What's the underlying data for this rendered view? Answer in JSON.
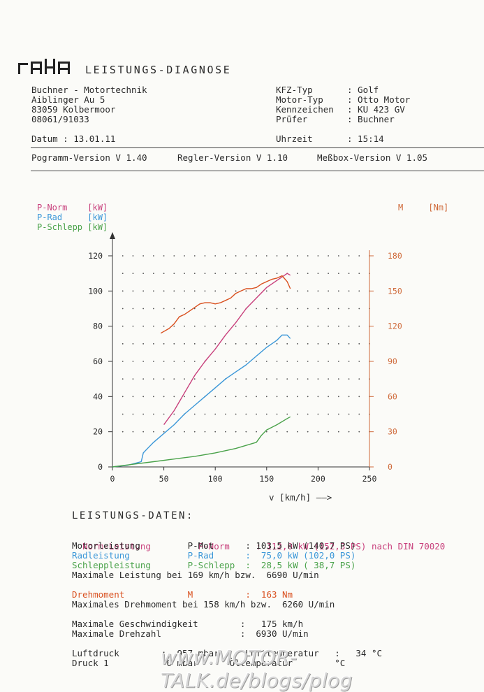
{
  "header": {
    "logo_text": "MAHA",
    "title": "LEISTUNGS-DIAGNOSE"
  },
  "company": {
    "line1": "Buchner - Motortechnik",
    "line2": "Aiblinger Au 5",
    "line3": "83059 Kolbermoor",
    "line4": "08061/91033"
  },
  "vehicle": {
    "kfz_label": "KFZ-Typ",
    "kfz_value": ": Golf",
    "motor_label": "Motor-Typ",
    "motor_value": ": Otto Motor",
    "kz_label": "Kennzeichen",
    "kz_value": ": KU 423 GV",
    "pruefer_label": "Prüfer",
    "pruefer_value": ": Buchner"
  },
  "date_row": {
    "datum": "Datum : 13.01.11",
    "uhrzeit_label": "Uhrzeit",
    "uhrzeit_value": ": 15:14"
  },
  "versions": {
    "programm": "Pogramm-Version V 1.40",
    "regler": "Regler-Version V 1.10",
    "messbox": "Meßbox-Version V 1.05"
  },
  "legend": {
    "pnorm": "P-Norm    [kW]",
    "prad": "P-Rad     [kW]",
    "pschlepp": "P-Schlepp [kW]",
    "m": "M     [Nm]"
  },
  "chart_data": {
    "type": "line",
    "xlabel": "v [km/h] ——>",
    "xlim": [
      0,
      250
    ],
    "ylim_left": [
      0,
      120
    ],
    "ylim_right": [
      0,
      180
    ],
    "xticks": [
      "0",
      "50",
      "100",
      "150",
      "200",
      "250"
    ],
    "yticks_left": [
      "0",
      "20",
      "40",
      "60",
      "80",
      "100",
      "120"
    ],
    "yticks_right": [
      "0",
      "30",
      "60",
      "90",
      "120",
      "150",
      "180"
    ],
    "grid": true,
    "colors": {
      "pnorm": "#c8407c",
      "prad": "#3b97d8",
      "pschlepp": "#4aa24a",
      "m": "#d9501f"
    },
    "series": [
      {
        "name": "P-Norm",
        "axis": "left",
        "x": [
          50,
          60,
          70,
          80,
          90,
          100,
          110,
          120,
          130,
          140,
          150,
          160,
          165,
          170,
          173
        ],
        "y": [
          24,
          32,
          42,
          52,
          60,
          67,
          75,
          82,
          90,
          96,
          102,
          106,
          108,
          110,
          109
        ]
      },
      {
        "name": "P-Rad",
        "axis": "left",
        "x": [
          0,
          15,
          28,
          30,
          35,
          40,
          50,
          60,
          70,
          80,
          90,
          100,
          110,
          120,
          130,
          140,
          150,
          160,
          165,
          170,
          173
        ],
        "y": [
          0,
          1,
          3,
          8,
          11,
          14,
          19,
          24,
          30,
          35,
          40,
          45,
          50,
          54,
          58,
          63,
          68,
          72,
          75,
          75,
          73
        ]
      },
      {
        "name": "P-Schlepp",
        "axis": "left",
        "x": [
          0,
          20,
          40,
          60,
          80,
          100,
          120,
          140,
          145,
          150,
          160,
          170,
          173
        ],
        "y": [
          0,
          1.5,
          3,
          4.5,
          6,
          8,
          10.5,
          14,
          18,
          21,
          24,
          27.5,
          28.5
        ]
      },
      {
        "name": "M",
        "axis": "right",
        "x": [
          47,
          55,
          60,
          65,
          70,
          75,
          80,
          85,
          90,
          95,
          100,
          105,
          110,
          115,
          120,
          125,
          130,
          135,
          140,
          145,
          150,
          155,
          160,
          165,
          170,
          173
        ],
        "y": [
          114,
          118,
          122,
          128,
          130,
          133,
          136,
          139,
          140,
          140,
          139,
          140,
          142,
          144,
          148,
          150,
          152,
          152,
          153,
          156,
          158,
          160,
          161,
          163,
          158,
          152
        ]
      }
    ]
  },
  "section": {
    "title": "LEISTUNGS-DATEN:"
  },
  "data_rows": {
    "r1": "Norm-Leistung         P-Norm     : 112,0 kW (152,3 PS) nach DIN 70020",
    "r2": "Motorleistung         P-Mot      : 103,5 kW (140,7 PS)",
    "r3": "Radleistung           P-Rad      :  75,0 kW (102,0 PS)",
    "r4": "Schleppleistung       P-Schlepp  :  28,5 kW ( 38,7 PS)",
    "r5": "Maximale Leistung bei 169 km/h bzw.  6690 U/min",
    "r6": "Drehmoment            M          :  163 Nm",
    "r7": "Maximales Drehmoment bei 158 km/h bzw.  6260 U/min",
    "r8": "Maximale Geschwindigkeit        :   175 km/h",
    "r9": "Maximale Drehzahl               :  6930 U/min",
    "r10": "Luftdruck        :  957 mbar     Lufttemperatur   :   34 °C",
    "r11": "Druck 1           0 mbar      Öltemperatur        °C"
  },
  "watermark": "www.MOTOR-TALK.de/blogs/plog"
}
